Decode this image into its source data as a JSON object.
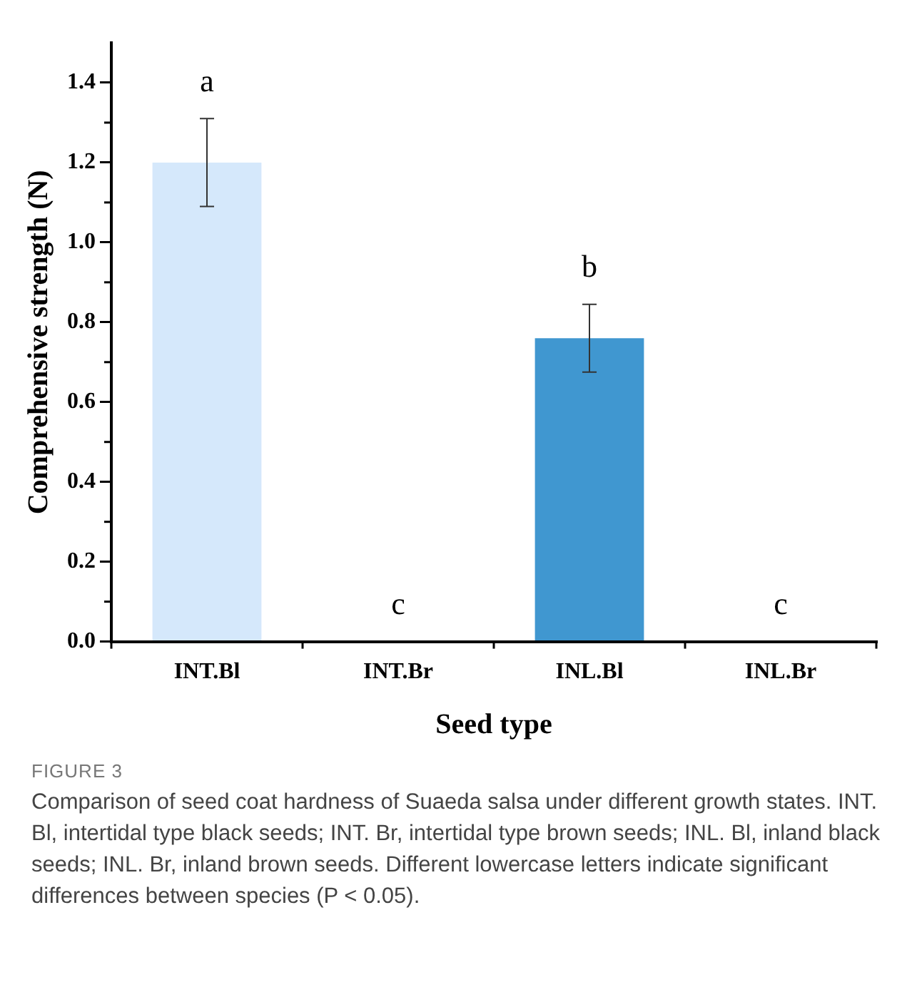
{
  "chart_data": {
    "type": "bar",
    "xlabel": "Seed type",
    "ylabel": "Comprehensive strength (N)",
    "categories": [
      "INT.Bl",
      "INT.Br",
      "INL.Bl",
      "INL.Br"
    ],
    "values": [
      1.2,
      0,
      0.76,
      0
    ],
    "errors": [
      0.11,
      null,
      0.085,
      null
    ],
    "colors": [
      "#d5e8fb",
      "#d5e8fb",
      "#4097d0",
      "#4097d0"
    ],
    "ylim": [
      0,
      1.5
    ],
    "yticks": [
      {
        "value": 0,
        "label": "0.0"
      },
      0.2,
      0.4,
      0.6,
      0.8,
      {
        "value": 1,
        "label": "1.0"
      },
      1.2,
      1.4
    ],
    "grid": false,
    "legend": false,
    "annotations": [
      "a",
      "c",
      "b",
      "c",
      "FIGURE 3",
      "Comparison of seed coat hardness of Suaeda salsa under different growth states. INT. Bl, intertidal type black seeds; INT. Br, intertidal type brown seeds; INL. Bl, inland black seeds; INL. Br, inland brown seeds. Different lowercase letters indicate significant differences between species (P < 0.05)."
    ]
  }
}
